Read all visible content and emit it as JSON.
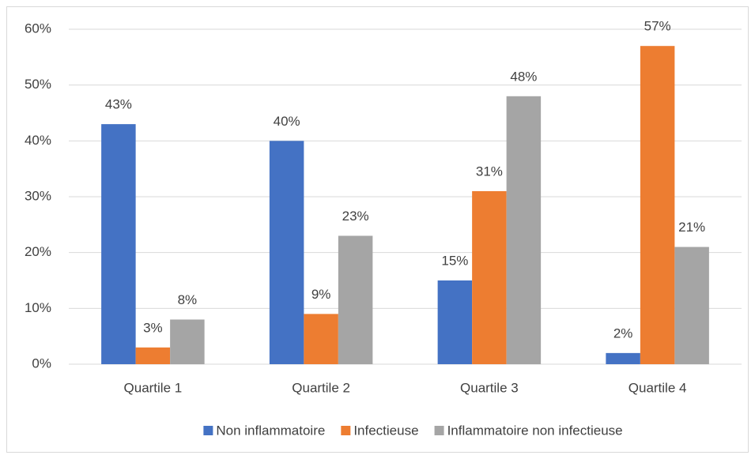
{
  "chart_data": {
    "type": "bar",
    "categories": [
      "Quartile 1",
      "Quartile 2",
      "Quartile 3",
      "Quartile 4"
    ],
    "series": [
      {
        "name": "Non inflammatoire",
        "color": "#4472c4",
        "values": [
          43,
          40,
          15,
          2
        ],
        "value_labels": [
          "43%",
          "40%",
          "15%",
          "2%"
        ]
      },
      {
        "name": "Infectieuse",
        "color": "#ed7d31",
        "values": [
          3,
          9,
          31,
          57
        ],
        "value_labels": [
          "3%",
          "9%",
          "31%",
          "57%"
        ]
      },
      {
        "name": "Inflammatoire non infectieuse",
        "color": "#a5a5a5",
        "values": [
          8,
          23,
          48,
          21
        ],
        "value_labels": [
          "8%",
          "23%",
          "48%",
          "21%"
        ]
      }
    ],
    "ylim": [
      0,
      60
    ],
    "yticks": [
      {
        "value": 0,
        "label": "0%"
      },
      {
        "value": 10,
        "label": "10%"
      },
      {
        "value": 20,
        "label": "20%"
      },
      {
        "value": 30,
        "label": "30%"
      },
      {
        "value": 40,
        "label": "40%"
      },
      {
        "value": 50,
        "label": "50%"
      },
      {
        "value": 60,
        "label": "60%"
      }
    ],
    "grid": true,
    "legend": "bottom"
  }
}
